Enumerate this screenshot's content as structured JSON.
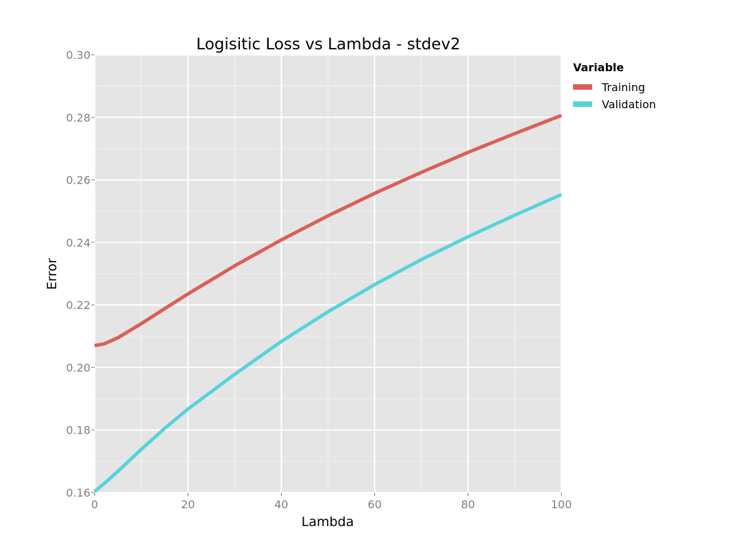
{
  "chart_data": {
    "type": "line",
    "title": "Logisitic Loss vs Lambda - stdev2",
    "xlabel": "Lambda",
    "ylabel": "Error",
    "xlim": [
      0,
      100
    ],
    "ylim": [
      0.16,
      0.3
    ],
    "xticks": [
      0,
      20,
      40,
      60,
      80,
      100
    ],
    "xtick_labels": [
      "0",
      "20",
      "40",
      "60",
      "80",
      "100"
    ],
    "yticks": [
      0.16,
      0.18,
      0.2,
      0.22,
      0.24,
      0.26,
      0.28,
      0.3
    ],
    "ytick_labels": [
      "0.16",
      "0.18",
      "0.20",
      "0.22",
      "0.24",
      "0.26",
      "0.28",
      "0.30"
    ],
    "grid": true,
    "legend": {
      "title": "Variable",
      "position": "right"
    },
    "x": [
      0,
      2,
      5,
      10,
      15,
      20,
      30,
      40,
      50,
      60,
      70,
      80,
      90,
      100
    ],
    "series": [
      {
        "name": "Training",
        "color": "#db5f57",
        "values": [
          0.207,
          0.2075,
          0.2095,
          0.214,
          0.2188,
          0.2235,
          0.2325,
          0.2408,
          0.2485,
          0.2557,
          0.2624,
          0.2688,
          0.2748,
          0.2806
        ]
      },
      {
        "name": "Validation",
        "color": "#57d3db",
        "values": [
          0.1603,
          0.1628,
          0.1668,
          0.1738,
          0.1805,
          0.1867,
          0.1978,
          0.2083,
          0.2178,
          0.2265,
          0.2345,
          0.2418,
          0.2487,
          0.2553
        ]
      }
    ]
  }
}
